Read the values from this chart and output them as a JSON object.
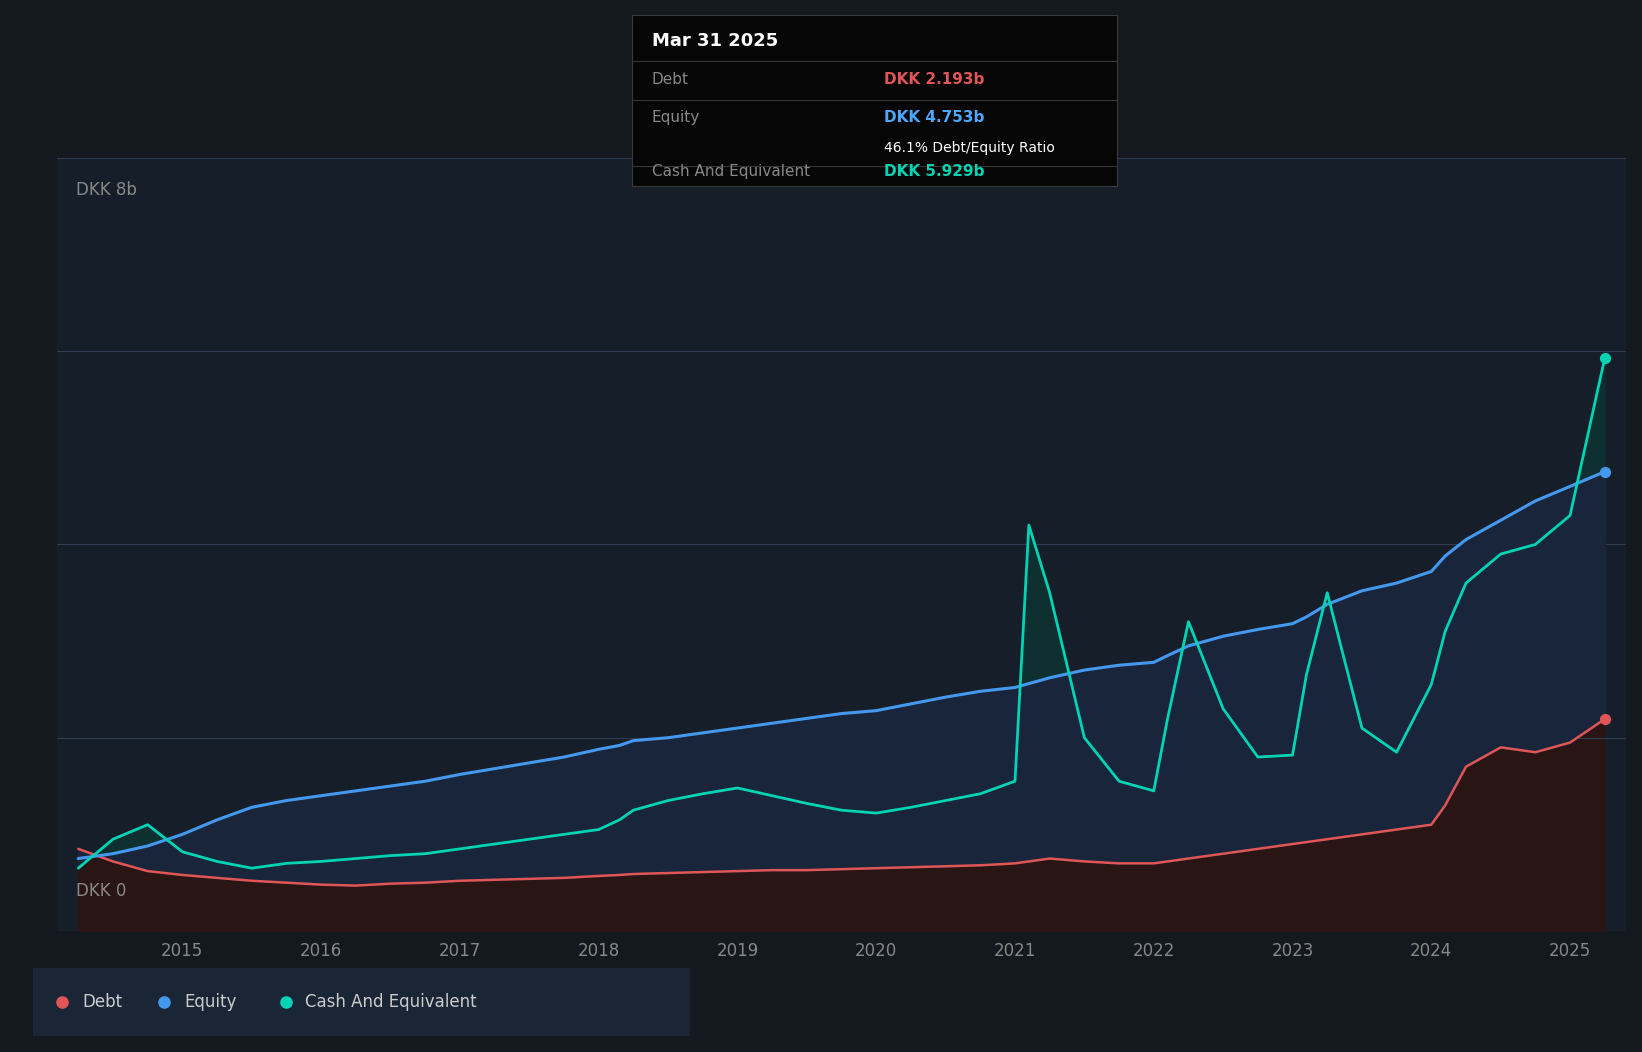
{
  "bg_color": "#13191f",
  "plot_bg_color": "#161e2a",
  "grid_color": "#2a3545",
  "title_box": {
    "date": "Mar 31 2025",
    "debt_label": "Debt",
    "debt_value": "DKK 2.193b",
    "equity_label": "Equity",
    "equity_value": "DKK 4.753b",
    "ratio": "46.1% Debt/Equity Ratio",
    "cash_label": "Cash And Equivalent",
    "cash_value": "DKK 5.929b",
    "bg_color": "#060606",
    "border_color": "#3a3a3a",
    "date_color": "#ffffff",
    "label_color": "#888888",
    "debt_value_color": "#e05555",
    "equity_value_color": "#4da6ff",
    "ratio_color": "#ffffff",
    "cash_value_color": "#00d4b4"
  },
  "y_label_top": "DKK 8b",
  "y_label_bottom": "DKK 0",
  "ylim": [
    0,
    8.0
  ],
  "debt_color": "#e05555",
  "equity_color": "#4499ee",
  "cash_color": "#00d4b4",
  "legend_bg": "#1a2535",
  "x_ticks": [
    "2015",
    "2016",
    "2017",
    "2018",
    "2019",
    "2020",
    "2021",
    "2022",
    "2023",
    "2024",
    "2025"
  ],
  "x_tick_positions": [
    2015.0,
    2016.0,
    2017.0,
    2018.0,
    2019.0,
    2020.0,
    2021.0,
    2022.0,
    2023.0,
    2024.0,
    2025.0
  ],
  "time": [
    2014.25,
    2014.5,
    2014.75,
    2015.0,
    2015.25,
    2015.5,
    2015.75,
    2016.0,
    2016.25,
    2016.5,
    2016.75,
    2017.0,
    2017.25,
    2017.5,
    2017.75,
    2018.0,
    2018.15,
    2018.25,
    2018.5,
    2018.75,
    2019.0,
    2019.25,
    2019.5,
    2019.75,
    2020.0,
    2020.25,
    2020.5,
    2020.75,
    2021.0,
    2021.1,
    2021.25,
    2021.5,
    2021.75,
    2022.0,
    2022.1,
    2022.25,
    2022.5,
    2022.75,
    2023.0,
    2023.1,
    2023.25,
    2023.5,
    2023.75,
    2024.0,
    2024.1,
    2024.25,
    2024.5,
    2024.75,
    2025.0,
    2025.25
  ],
  "debt": [
    0.85,
    0.72,
    0.62,
    0.58,
    0.55,
    0.52,
    0.5,
    0.48,
    0.47,
    0.49,
    0.5,
    0.52,
    0.53,
    0.54,
    0.55,
    0.57,
    0.58,
    0.59,
    0.6,
    0.61,
    0.62,
    0.63,
    0.63,
    0.64,
    0.65,
    0.66,
    0.67,
    0.68,
    0.7,
    0.72,
    0.75,
    0.72,
    0.7,
    0.7,
    0.72,
    0.75,
    0.8,
    0.85,
    0.9,
    0.92,
    0.95,
    1.0,
    1.05,
    1.1,
    1.3,
    1.7,
    1.9,
    1.85,
    1.95,
    2.193
  ],
  "equity": [
    0.75,
    0.8,
    0.88,
    1.0,
    1.15,
    1.28,
    1.35,
    1.4,
    1.45,
    1.5,
    1.55,
    1.62,
    1.68,
    1.74,
    1.8,
    1.88,
    1.92,
    1.97,
    2.0,
    2.05,
    2.1,
    2.15,
    2.2,
    2.25,
    2.28,
    2.35,
    2.42,
    2.48,
    2.52,
    2.56,
    2.62,
    2.7,
    2.75,
    2.78,
    2.85,
    2.95,
    3.05,
    3.12,
    3.18,
    3.25,
    3.38,
    3.52,
    3.6,
    3.72,
    3.88,
    4.05,
    4.25,
    4.45,
    4.6,
    4.753
  ],
  "cash": [
    0.65,
    0.95,
    1.1,
    0.82,
    0.72,
    0.65,
    0.7,
    0.72,
    0.75,
    0.78,
    0.8,
    0.85,
    0.9,
    0.95,
    1.0,
    1.05,
    1.15,
    1.25,
    1.35,
    1.42,
    1.48,
    1.4,
    1.32,
    1.25,
    1.22,
    1.28,
    1.35,
    1.42,
    1.55,
    4.2,
    3.5,
    2.0,
    1.55,
    1.45,
    2.2,
    3.2,
    2.3,
    1.8,
    1.82,
    2.65,
    3.5,
    2.1,
    1.85,
    2.55,
    3.1,
    3.6,
    3.9,
    4.0,
    4.3,
    5.929
  ]
}
